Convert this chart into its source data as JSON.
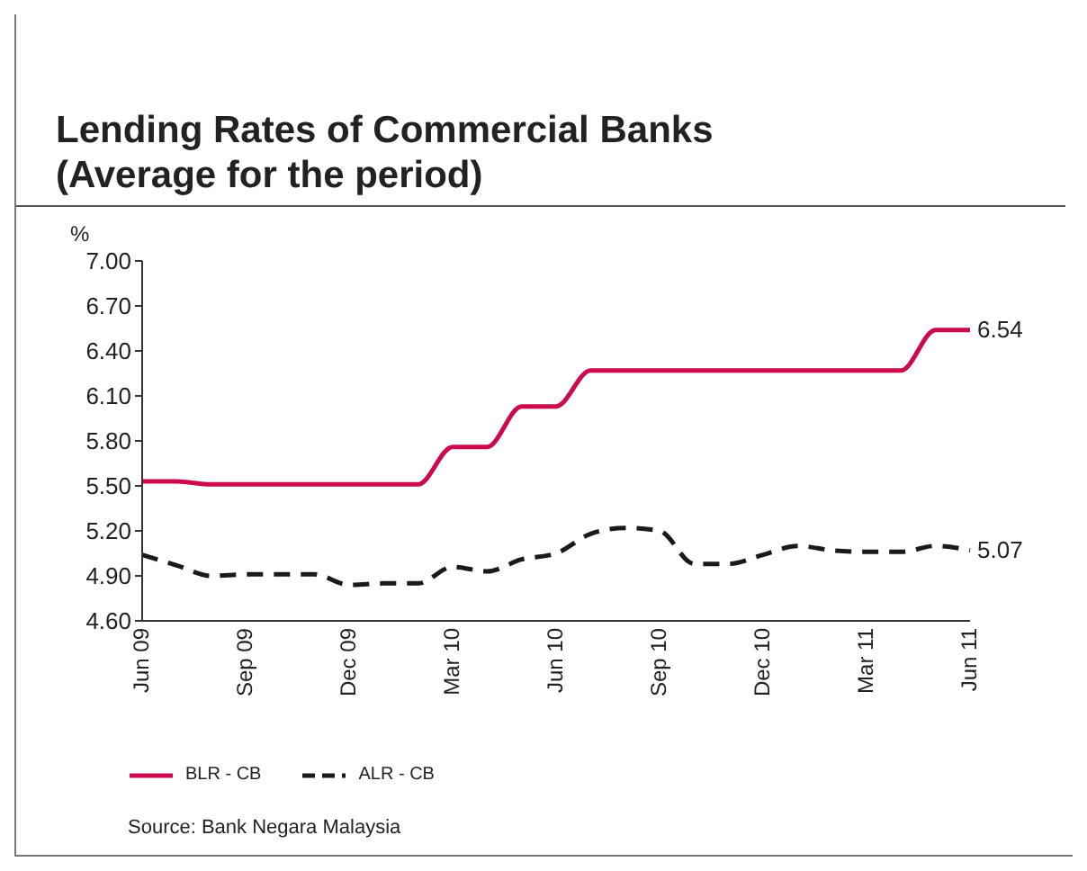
{
  "chart_data": {
    "type": "line",
    "title": "Lending Rates of Commercial Banks\n(Average for the period)",
    "ylabel": "%",
    "categories": [
      "Jun 09",
      null,
      null,
      "Sep 09",
      null,
      null,
      "Dec 09",
      null,
      null,
      "Mar 10",
      null,
      null,
      "Jun 10",
      null,
      null,
      "Sep 10",
      null,
      null,
      "Dec 10",
      null,
      null,
      "Mar 11",
      null,
      null,
      "Jun 11"
    ],
    "series": [
      {
        "name": "BLR - CB",
        "color": "#cc0a4e",
        "line_style": "solid",
        "values": [
          5.53,
          5.53,
          5.51,
          5.51,
          5.51,
          5.51,
          5.51,
          5.51,
          5.51,
          5.76,
          5.76,
          6.03,
          6.03,
          6.27,
          6.27,
          6.27,
          6.27,
          6.27,
          6.27,
          6.27,
          6.27,
          6.27,
          6.27,
          6.54,
          6.54
        ],
        "value_labels": [
          null,
          null,
          null,
          null,
          null,
          null,
          null,
          null,
          null,
          null,
          null,
          null,
          null,
          null,
          null,
          null,
          null,
          null,
          null,
          null,
          null,
          null,
          null,
          null,
          "6.54"
        ]
      },
      {
        "name": "ALR - CB",
        "color": "#1a1a1a",
        "line_style": "dashed",
        "values": [
          5.04,
          4.97,
          4.9,
          4.91,
          4.91,
          4.91,
          4.84,
          4.85,
          4.85,
          4.96,
          4.93,
          5.01,
          5.05,
          5.18,
          5.22,
          5.2,
          4.98,
          4.98,
          5.04,
          5.1,
          5.07,
          5.06,
          5.06,
          5.1,
          5.07
        ],
        "value_labels": [
          null,
          null,
          null,
          null,
          null,
          null,
          null,
          null,
          null,
          null,
          null,
          null,
          null,
          null,
          null,
          null,
          null,
          null,
          null,
          null,
          null,
          null,
          null,
          null,
          "5.07"
        ]
      }
    ],
    "ylim": [
      4.6,
      7.0
    ],
    "yticks": [
      {
        "value": 4.6,
        "label": "4.60"
      },
      {
        "value": 4.9,
        "label": "4.90"
      },
      {
        "value": 5.2,
        "label": "5.20"
      },
      {
        "value": 5.5,
        "label": "5.50"
      },
      {
        "value": 5.8,
        "label": "5.80"
      },
      {
        "value": 6.1,
        "label": "6.10"
      },
      {
        "value": 6.4,
        "label": "6.40"
      },
      {
        "value": 6.7,
        "label": "6.70"
      },
      {
        "value": 7.0,
        "label": "7.00"
      }
    ],
    "grid": false,
    "legend": "bottom left",
    "marker": "none",
    "annotations": [
      "Source: Bank Negara Malaysia"
    ]
  }
}
